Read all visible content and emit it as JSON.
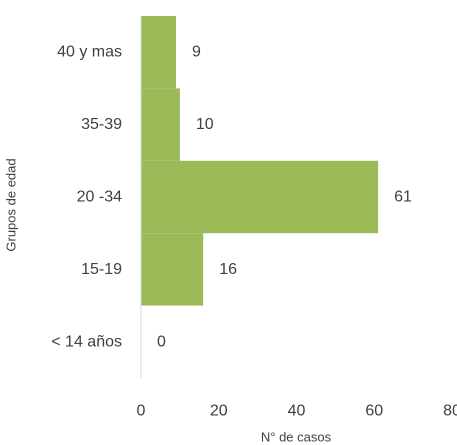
{
  "chart_data": {
    "type": "bar",
    "orientation": "horizontal",
    "categories": [
      "< 14 años",
      "15-19",
      "20 -34",
      "35-39",
      "40 y mas"
    ],
    "values": [
      0,
      16,
      61,
      10,
      9
    ],
    "data_labels": [
      "0",
      "16",
      "61",
      "10",
      "9"
    ],
    "xlabel": "N° de casos",
    "ylabel": "Grupos de edad",
    "xlim": [
      0,
      80
    ],
    "x_ticks": [
      "0",
      "20",
      "40",
      "60",
      "80"
    ],
    "grid": false,
    "legend": "none",
    "bar_color": "#9bbb59",
    "axis_color": "#d9d9d9"
  }
}
